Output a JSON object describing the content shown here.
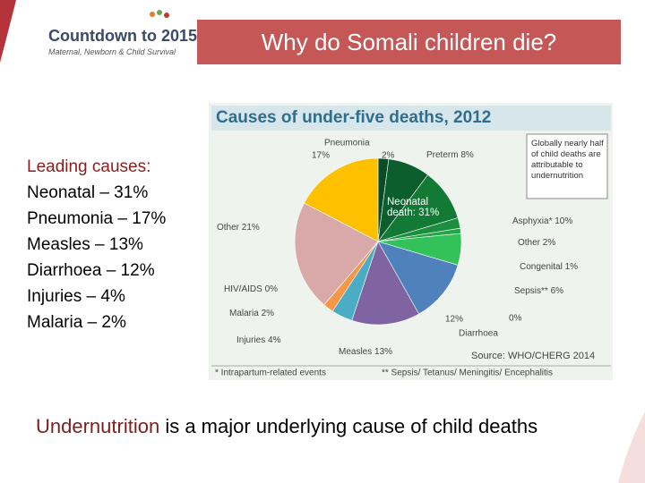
{
  "header": {
    "logo_title": "Countdown to 2015",
    "logo_subtitle": "Maternal, Newborn & Child Survival",
    "title": "Why do Somali children die?"
  },
  "left_list": {
    "heading": "Leading causes:",
    "items": [
      "Neonatal – 31%",
      "Pneumonia – 17%",
      "Measles – 13%",
      "Diarrhoea – 12%",
      "Injuries – 4%",
      "Malaria – 2%"
    ]
  },
  "chart_data": {
    "type": "pie",
    "title": "Causes of under-five deaths, 2012",
    "categories": [
      null,
      "Preterm",
      "Asphyxia*",
      "Other",
      "Congenital",
      "Sepsis**",
      null,
      "Diarrhoea",
      "Measles",
      "Injuries",
      "Malaria",
      "HIV/AIDS",
      "Other",
      "Pneumonia"
    ],
    "values": [
      2,
      8,
      10,
      2,
      1,
      6,
      0,
      12,
      13,
      4,
      2,
      0,
      21,
      17
    ],
    "value_labels": [
      "2%",
      "8%",
      "10%",
      "2%",
      "1%",
      "6%",
      "0%",
      "12%",
      "13%",
      "4%",
      "2%",
      "0%",
      "21%",
      "17%"
    ],
    "colors": [
      "#0a4d25",
      "#0d5e2d",
      "#137a36",
      "#1c8f3e",
      "#27a546",
      "#33c159",
      "#7fd28f",
      "#4f81bd",
      "#8064a2",
      "#4bacc6",
      "#f79646",
      "#c0504d",
      "#d9a8a8",
      "#ffc000"
    ],
    "annotations": [
      "Neonatal death: 31%",
      "Globally nearly half of child deaths are attributable to undernutrition",
      "Source: WHO/CHERG 2014"
    ],
    "footnotes": [
      "* Intrapartum-related events",
      "** Sepsis/ Tetanus/ Meningitis/ Encephalitis"
    ]
  },
  "footer": {
    "highlight": "Undernutrition",
    "text": "is a major underlying cause of child deaths"
  }
}
